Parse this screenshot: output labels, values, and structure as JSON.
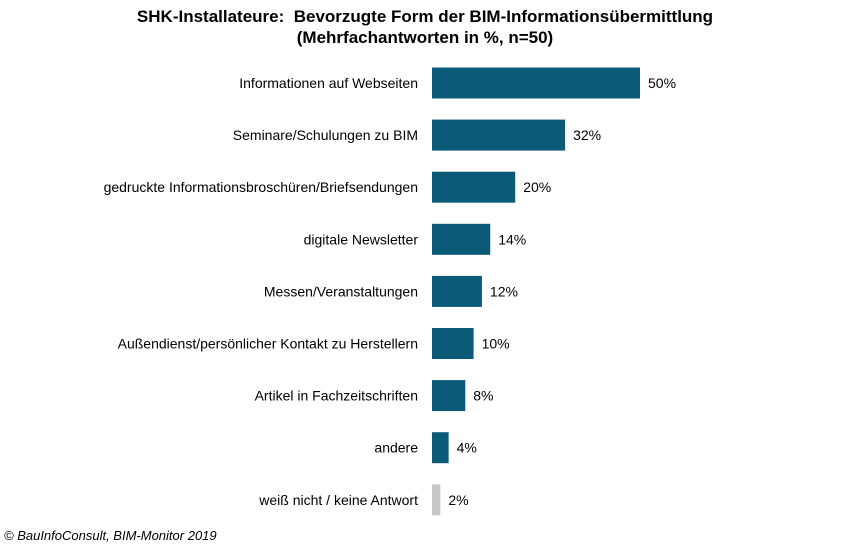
{
  "chart_data": {
    "type": "bar",
    "orientation": "horizontal",
    "title": "SHK-Installateure:  Bevorzugte Form der BIM-Informationsübermittlung",
    "subtitle": "(Mehrfachantworten in %, n=50)",
    "categories": [
      "Informationen auf Webseiten",
      "Seminare/Schulungen zu BIM",
      "gedruckte Informationsbroschüren/Briefsendungen",
      "digitale Newsletter",
      "Messen/Veranstaltungen",
      "Außendienst/persönlicher Kontakt zu Herstellern",
      "Artikel in Fachzeitschriften",
      "andere",
      "weiß nicht / keine Antwort"
    ],
    "values": [
      50,
      32,
      20,
      14,
      12,
      10,
      8,
      4,
      2
    ],
    "value_labels": [
      "50%",
      "32%",
      "20%",
      "14%",
      "12%",
      "10%",
      "8%",
      "4%",
      "2%"
    ],
    "xlim": [
      0,
      50
    ],
    "grid": false,
    "legend": "none",
    "colors": {
      "bar": "#0b5a78",
      "bar_no_answer": "#c8c8c8"
    }
  },
  "footer": {
    "source": "© BauInfoConsult, BIM-Monitor 2019"
  }
}
